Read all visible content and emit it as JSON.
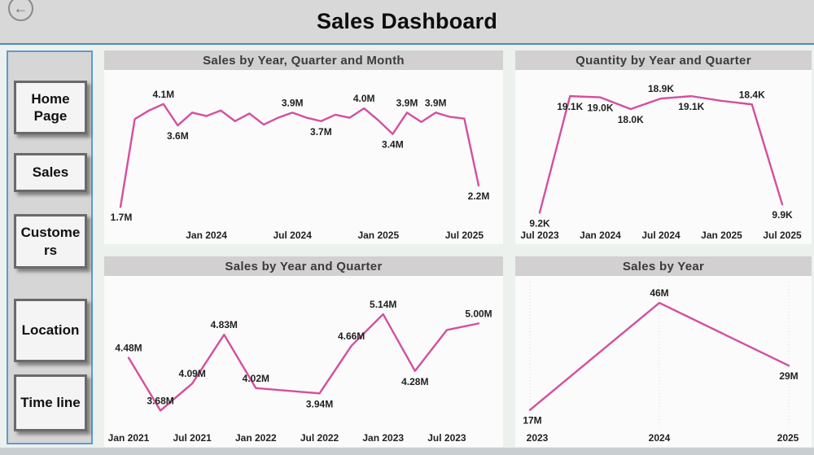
{
  "header": {
    "title": "Sales Dashboard"
  },
  "icons": {
    "back": "←"
  },
  "colors": {
    "line": "#D44F9E",
    "accent_border": "#5B9BD5",
    "header_bg": "#D8D8D8",
    "title_bar_bg": "#D2D0D1",
    "panel_bg": "#FBFBFB",
    "page_bg": "#ECF1EE"
  },
  "sidebar": {
    "items": [
      {
        "label": "Home Page"
      },
      {
        "label": "Sales"
      },
      {
        "label": "Customers"
      },
      {
        "label": "Location"
      },
      {
        "label": "Time line"
      }
    ]
  },
  "chart_data": [
    {
      "type": "line",
      "title": "Sales by Year, Quarter and Month",
      "unit": "M",
      "ymin": 1.4,
      "ymax": 4.4,
      "pads": [
        26,
        30,
        30,
        20
      ],
      "grid": false,
      "points": [
        {
          "v": 1.7,
          "label": "1.7M",
          "lp": "b"
        },
        {
          "v": 3.75
        },
        {
          "v": 3.95
        },
        {
          "v": 4.1,
          "label": "4.1M",
          "lp": "a"
        },
        {
          "v": 3.6,
          "label": "3.6M",
          "lp": "b"
        },
        {
          "v": 3.9
        },
        {
          "v": 3.82
        },
        {
          "v": 3.95
        },
        {
          "v": 3.7
        },
        {
          "v": 3.88
        },
        {
          "v": 3.62
        },
        {
          "v": 3.78
        },
        {
          "v": 3.9,
          "label": "3.9M",
          "lp": "a"
        },
        {
          "v": 3.78
        },
        {
          "v": 3.7,
          "label": "3.7M",
          "lp": "b"
        },
        {
          "v": 3.85
        },
        {
          "v": 3.78
        },
        {
          "v": 4.0,
          "label": "4.0M",
          "lp": "a"
        },
        {
          "v": 3.72
        },
        {
          "v": 3.4,
          "label": "3.4M",
          "lp": "b"
        },
        {
          "v": 3.9,
          "label": "3.9M",
          "lp": "a"
        },
        {
          "v": 3.68
        },
        {
          "v": 3.9,
          "label": "3.9M",
          "lp": "a"
        },
        {
          "v": 3.8
        },
        {
          "v": 3.76
        },
        {
          "v": 2.2,
          "label": "2.2M",
          "lp": "b"
        }
      ],
      "ticks": [
        {
          "i": 6,
          "label": "Jan 2024"
        },
        {
          "i": 12,
          "label": "Jul 2024"
        },
        {
          "i": 18,
          "label": "Jan 2025"
        },
        {
          "i": 24,
          "label": "Jul 2025"
        }
      ]
    },
    {
      "type": "line",
      "title": "Quantity by Year and Quarter",
      "unit": "K",
      "ymin": 8.6,
      "ymax": 19.8,
      "pads": [
        22,
        36,
        30,
        30
      ],
      "grid": false,
      "points": [
        {
          "v": 9.2,
          "label": "9.2K",
          "lp": "b"
        },
        {
          "v": 19.1,
          "label": "19.1K",
          "lp": "b"
        },
        {
          "v": 19.0,
          "label": "19.0K",
          "lp": "b"
        },
        {
          "v": 18.0,
          "label": "18.0K",
          "lp": "b"
        },
        {
          "v": 18.9,
          "label": "18.9K",
          "lp": "a"
        },
        {
          "v": 19.1,
          "label": "19.1K",
          "lp": "b"
        },
        {
          "v": 18.7
        },
        {
          "v": 18.4,
          "label": "18.4K",
          "lp": "a"
        },
        {
          "v": 9.9,
          "label": "9.9K",
          "lp": "b"
        }
      ],
      "ticks": [
        {
          "i": 0,
          "label": "Jul 2023"
        },
        {
          "i": 2,
          "label": "Jan 2024"
        },
        {
          "i": 4,
          "label": "Jul 2024"
        },
        {
          "i": 6,
          "label": "Jan 2025"
        },
        {
          "i": 8,
          "label": "Jul 2025"
        }
      ]
    },
    {
      "type": "line",
      "title": "Sales by Year and Quarter",
      "unit": "M",
      "ymin": 3.5,
      "ymax": 5.35,
      "pads": [
        30,
        30,
        30,
        30
      ],
      "grid": false,
      "points": [
        {
          "v": 4.48,
          "label": "4.48M",
          "lp": "a"
        },
        {
          "v": 3.68,
          "label": "3.68M",
          "lp": "a"
        },
        {
          "v": 4.09,
          "label": "4.09M",
          "lp": "a"
        },
        {
          "v": 4.83,
          "label": "4.83M",
          "lp": "a"
        },
        {
          "v": 4.02,
          "label": "4.02M",
          "lp": "a"
        },
        {
          "v": 3.98
        },
        {
          "v": 3.94,
          "label": "3.94M",
          "lp": "b"
        },
        {
          "v": 4.66,
          "label": "4.66M",
          "lp": "a"
        },
        {
          "v": 5.14,
          "label": "5.14M",
          "lp": "a"
        },
        {
          "v": 4.28,
          "label": "4.28M",
          "lp": "b"
        },
        {
          "v": 4.9
        },
        {
          "v": 5.0,
          "label": "5.00M",
          "lp": "a"
        }
      ],
      "ticks": [
        {
          "i": 0,
          "label": "Jan 2021"
        },
        {
          "i": 2,
          "label": "Jul 2021"
        },
        {
          "i": 4,
          "label": "Jan 2022"
        },
        {
          "i": 6,
          "label": "Jul 2022"
        },
        {
          "i": 8,
          "label": "Jan 2023"
        },
        {
          "i": 10,
          "label": "Jul 2023"
        }
      ]
    },
    {
      "type": "line",
      "title": "Sales by Year",
      "unit": "M",
      "ymin": 14.5,
      "ymax": 48,
      "pads": [
        24,
        28,
        34,
        18
      ],
      "grid": true,
      "points": [
        {
          "v": 17,
          "label": "17M",
          "lp": "b"
        },
        {
          "v": 46,
          "label": "46M",
          "lp": "a"
        },
        {
          "v": 29,
          "label": "29M",
          "lp": "b"
        }
      ],
      "ticks": [
        {
          "i": 0,
          "label": "2023"
        },
        {
          "i": 1,
          "label": "2024"
        },
        {
          "i": 2,
          "label": "2025"
        }
      ]
    }
  ]
}
